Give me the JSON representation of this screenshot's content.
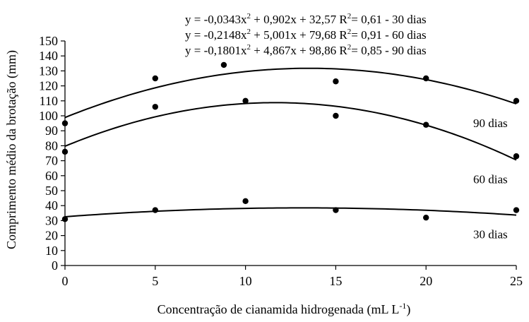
{
  "chart_data": {
    "type": "scatter",
    "xlabel": "Concentração de cianamida hidrogenada (mL L",
    "xlabel_sup": "-1",
    "xlabel_close": ")",
    "ylabel": "Comprimento médio da brotação (mm)",
    "xlim": [
      0,
      25
    ],
    "ylim": [
      0,
      150
    ],
    "xticks": [
      0,
      5,
      10,
      15,
      20,
      25
    ],
    "yticks": [
      0,
      10,
      20,
      30,
      40,
      50,
      60,
      70,
      80,
      90,
      100,
      110,
      120,
      130,
      140,
      150
    ],
    "grid": false,
    "equations": [
      {
        "pre": "y = -0,0343x",
        "exp": "2",
        "mid": " + 0,902x + 32,57  R",
        "r2sup": "2",
        "post": "= 0,61 - 30 dias"
      },
      {
        "pre": "y = -0,2148x",
        "exp": "2",
        "mid": " + 5,001x + 79,68  R",
        "r2sup": "2",
        "post": "= 0,91 - 60 dias"
      },
      {
        "pre": "y = -0,1801x",
        "exp": "2",
        "mid": " + 4,867x + 98,86  R",
        "r2sup": "2",
        "post": "= 0,85 - 90 dias"
      }
    ],
    "series": [
      {
        "name": "30 dias",
        "label": "30 dias",
        "coef": [
          -0.0343,
          0.902,
          32.57
        ],
        "points": [
          [
            0,
            31
          ],
          [
            5,
            37
          ],
          [
            10,
            43
          ],
          [
            15,
            37
          ],
          [
            20,
            32
          ],
          [
            25,
            37
          ]
        ]
      },
      {
        "name": "60 dias",
        "label": "60 dias",
        "coef": [
          -0.2148,
          5.001,
          79.68
        ],
        "points": [
          [
            0,
            76
          ],
          [
            5,
            106
          ],
          [
            10,
            110
          ],
          [
            15,
            100
          ],
          [
            20,
            94
          ],
          [
            25,
            73
          ]
        ]
      },
      {
        "name": "90 dias",
        "label": "90 dias",
        "coef": [
          -0.1801,
          4.867,
          98.86
        ],
        "points": [
          [
            0,
            95
          ],
          [
            5,
            125
          ],
          [
            8.8,
            134
          ],
          [
            15,
            123
          ],
          [
            20,
            125
          ],
          [
            25,
            110
          ]
        ]
      }
    ]
  }
}
